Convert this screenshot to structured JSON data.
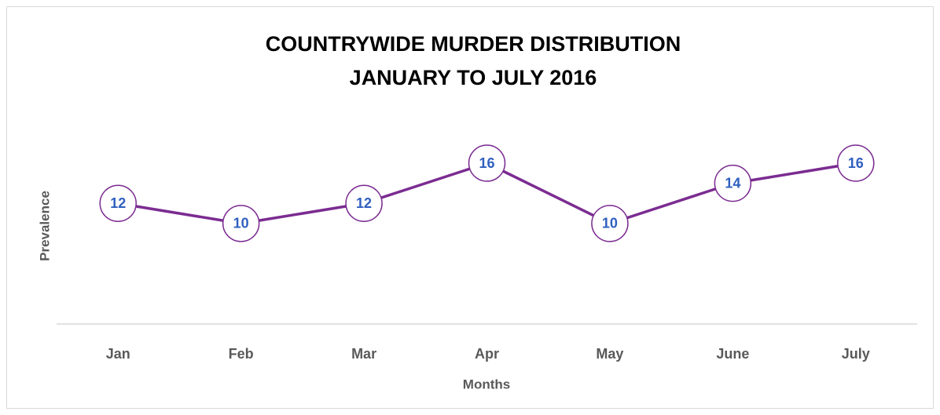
{
  "chart_data": {
    "type": "line",
    "title": [
      "COUNTRYWIDE MURDER DISTRIBUTION",
      "JANUARY TO JULY 2016"
    ],
    "x_label": "Months",
    "y_label": "Prevalence",
    "categories": [
      "Jan",
      "Feb",
      "Mar",
      "Apr",
      "May",
      "June",
      "July"
    ],
    "values": [
      12,
      10,
      12,
      16,
      10,
      14,
      16
    ],
    "color": "#7b2c91",
    "label_color": "#2f5fbf",
    "ylim": [
      0,
      16
    ]
  }
}
